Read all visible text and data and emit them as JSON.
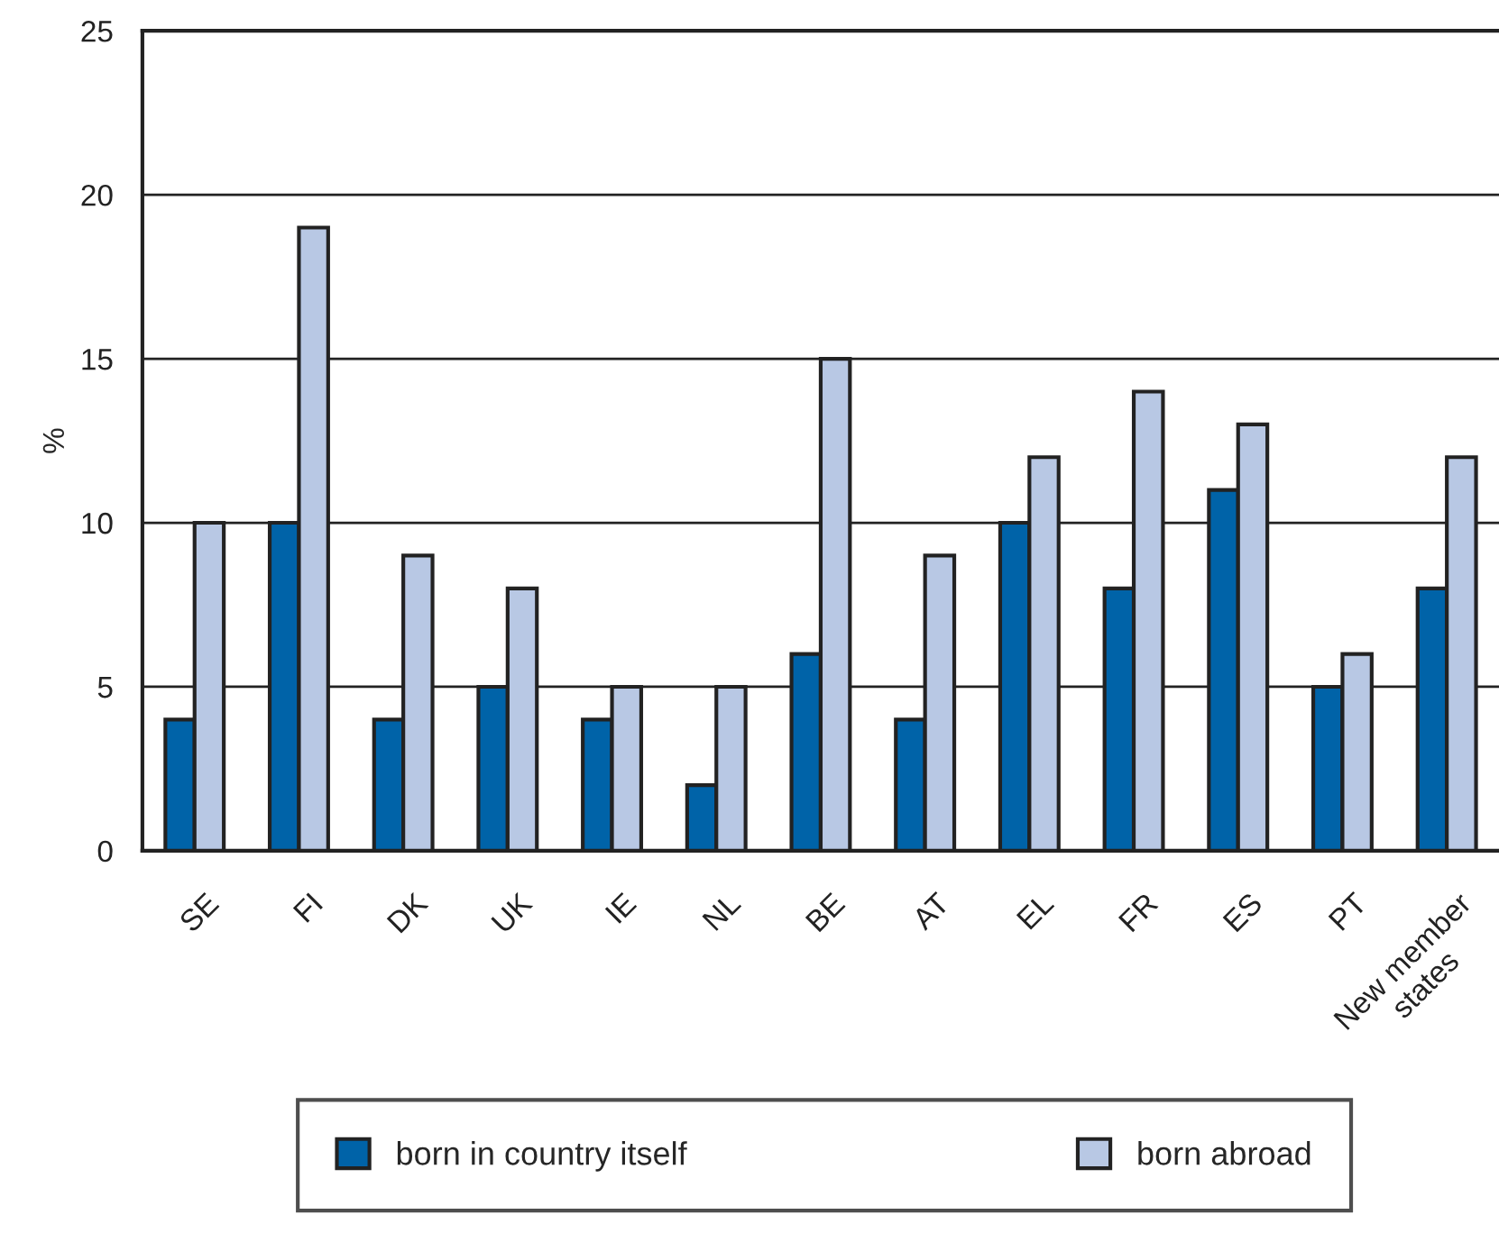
{
  "chart_data": {
    "type": "bar",
    "ylabel": "%",
    "categories": [
      "SE",
      "FI",
      "DK",
      "UK",
      "IE",
      "NL",
      "BE",
      "AT",
      "EL",
      "FR",
      "ES",
      "PT",
      "New member\nstates"
    ],
    "series": [
      {
        "name": "born in country itself",
        "color": "#0063a8",
        "values": [
          4,
          10,
          4,
          5,
          4,
          2,
          6,
          4,
          10,
          8,
          11,
          5,
          8
        ]
      },
      {
        "name": "born abroad",
        "color": "#b8c8e4",
        "values": [
          10,
          19,
          9,
          8,
          5,
          5,
          15,
          9,
          12,
          14,
          13,
          6,
          12
        ]
      }
    ],
    "ylim": [
      0,
      25
    ],
    "yticks": [
      0,
      5,
      10,
      15,
      20,
      25
    ],
    "grid": "y",
    "legend": "bottom"
  }
}
